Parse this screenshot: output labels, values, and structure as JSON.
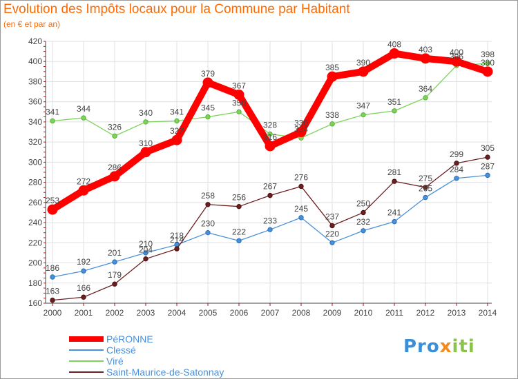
{
  "header": {
    "title": "Evolution des Impôts locaux pour la Commune par Habitant",
    "subtitle": "(en € et par an)"
  },
  "chart_data": {
    "type": "line",
    "title": "Evolution des Impôts locaux pour la Commune par Habitant",
    "subtitle": "(en € et par an)",
    "xlabel": "",
    "ylabel": "",
    "x": [
      "2000",
      "2001",
      "2002",
      "2003",
      "2004",
      "2005",
      "2006",
      "2007",
      "2008",
      "2009",
      "2010",
      "2011",
      "2012",
      "2013",
      "2014"
    ],
    "ylim": [
      160,
      420
    ],
    "yticks": [
      160,
      180,
      200,
      220,
      240,
      260,
      280,
      300,
      320,
      340,
      360,
      380,
      400,
      420
    ],
    "grid": true,
    "legend_position": "bottom-left",
    "series": [
      {
        "name": "PéRONNE",
        "color": "#ff0000",
        "values": [
          253,
          272,
          286,
          310,
          322,
          379,
          367,
          316,
          330,
          385,
          390,
          408,
          403,
          400,
          390
        ],
        "labels": [
          "253",
          "272",
          "286",
          "310",
          "322",
          "379",
          "367",
          "316",
          "330",
          "385",
          "390",
          "408",
          "403",
          "400",
          "390"
        ]
      },
      {
        "name": "Clessé",
        "color": "#4a90d9",
        "values": [
          186,
          192,
          201,
          210,
          218,
          230,
          222,
          233,
          245,
          220,
          232,
          241,
          265,
          284,
          287
        ],
        "labels": [
          "186",
          "192",
          "201",
          "210",
          "218",
          "230",
          "222",
          "233",
          "245",
          "220",
          "232",
          "241",
          "265",
          "284",
          "287"
        ]
      },
      {
        "name": "Viré",
        "color": "#7dd35a",
        "values": [
          341,
          344,
          326,
          340,
          341,
          345,
          350,
          328,
          324,
          338,
          347,
          351,
          364,
          396,
          398
        ],
        "labels": [
          "341",
          "344",
          "326",
          "340",
          "341",
          "345",
          "350",
          "328",
          "324",
          "338",
          "347",
          "351",
          "364",
          "396",
          "398"
        ]
      },
      {
        "name": "Saint-Maurice-de-Satonnay",
        "color": "#6b1f1f",
        "values": [
          163,
          166,
          179,
          204,
          214,
          258,
          256,
          267,
          276,
          237,
          250,
          281,
          275,
          299,
          305
        ],
        "labels": [
          "163",
          "166",
          "179",
          "204",
          "214",
          "258",
          "256",
          "267",
          "276",
          "237",
          "250",
          "281",
          "275",
          "299",
          "305"
        ]
      }
    ]
  },
  "legend": {
    "items": [
      {
        "label": "PéRONNE",
        "color": "#ff0000"
      },
      {
        "label": "Clessé",
        "color": "#4a90d9"
      },
      {
        "label": "Viré",
        "color": "#7dd35a"
      },
      {
        "label": "Saint-Maurice-de-Satonnay",
        "color": "#6b1f1f"
      }
    ]
  },
  "logo": {
    "part1": "Pro",
    "part2": "x",
    "part3": "iti"
  }
}
